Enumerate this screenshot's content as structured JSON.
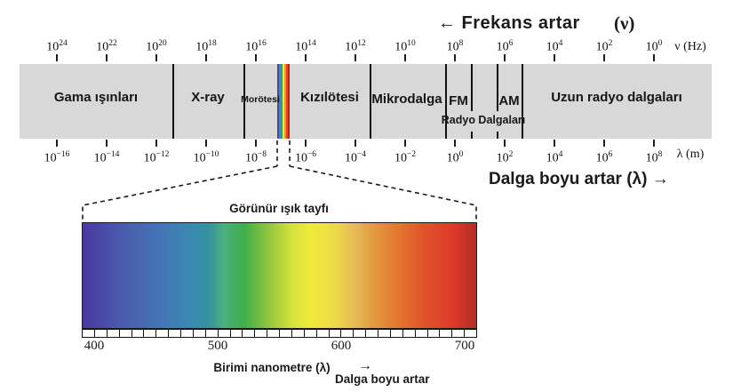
{
  "header": {
    "frekans_artar": "← Frekans artar",
    "nu_symbol": "(ν)"
  },
  "freq_axis": {
    "unit": "ν (Hz)",
    "ticks": [
      {
        "base": "10",
        "exp": "24"
      },
      {
        "base": "10",
        "exp": "22"
      },
      {
        "base": "10",
        "exp": "20"
      },
      {
        "base": "10",
        "exp": "18"
      },
      {
        "base": "10",
        "exp": "16"
      },
      {
        "base": "10",
        "exp": "14"
      },
      {
        "base": "10",
        "exp": "12"
      },
      {
        "base": "10",
        "exp": "10"
      },
      {
        "base": "10",
        "exp": "8"
      },
      {
        "base": "10",
        "exp": "6"
      },
      {
        "base": "10",
        "exp": "4"
      },
      {
        "base": "10",
        "exp": "2"
      },
      {
        "base": "10",
        "exp": "0"
      }
    ]
  },
  "wave_axis": {
    "unit": "λ (m)",
    "ticks": [
      {
        "base": "10",
        "exp": "−16"
      },
      {
        "base": "10",
        "exp": "−14"
      },
      {
        "base": "10",
        "exp": "−12"
      },
      {
        "base": "10",
        "exp": "−10"
      },
      {
        "base": "10",
        "exp": "−8"
      },
      {
        "base": "10",
        "exp": "−6"
      },
      {
        "base": "10",
        "exp": "−4"
      },
      {
        "base": "10",
        "exp": "−2"
      },
      {
        "base": "10",
        "exp": "0"
      },
      {
        "base": "10",
        "exp": "2"
      },
      {
        "base": "10",
        "exp": "4"
      },
      {
        "base": "10",
        "exp": "6"
      },
      {
        "base": "10",
        "exp": "8"
      }
    ]
  },
  "band": {
    "background": "#d8d8d8",
    "regions": {
      "gamma": "Gama ışınları",
      "xray": "X-ray",
      "uv": "Morötesi",
      "ir": "Kızılötesi",
      "microwave": "Mikrodalga",
      "fm": "FM",
      "am": "AM",
      "radio_sub": "Radyo Dalgaları",
      "long_radio": "Uzun radyo dalgaları"
    },
    "visible_strip_colors": [
      "#35519f",
      "#3f87c4",
      "#3aa14c",
      "#f0e63a",
      "#f09430",
      "#de452a",
      "#a8291f"
    ]
  },
  "wave_caption": "Dalga boyu artar  (λ) →",
  "visible_spectrum": {
    "title": "Görünür ışık tayfı",
    "scale_labels": [
      "400",
      "500",
      "600",
      "700"
    ],
    "ruler_cells": 32,
    "unit_caption": "Birimi nanometre  (λ)",
    "direction_caption": "Dalga boyu artar",
    "direction_arrow": "→",
    "gradient": [
      {
        "p": 0,
        "c": "#4a38a2"
      },
      {
        "p": 10,
        "c": "#4a5cad"
      },
      {
        "p": 20,
        "c": "#4476b6"
      },
      {
        "p": 27,
        "c": "#3a88b4"
      },
      {
        "p": 32,
        "c": "#35939f"
      },
      {
        "p": 36,
        "c": "#49b07e"
      },
      {
        "p": 41,
        "c": "#3fae4b"
      },
      {
        "p": 47,
        "c": "#8ec43d"
      },
      {
        "p": 53,
        "c": "#d4e23c"
      },
      {
        "p": 58,
        "c": "#f0ea3a"
      },
      {
        "p": 64,
        "c": "#eeda48"
      },
      {
        "p": 69,
        "c": "#e7bb57"
      },
      {
        "p": 74,
        "c": "#e29a3e"
      },
      {
        "p": 80,
        "c": "#e5762f"
      },
      {
        "p": 87,
        "c": "#e1522c"
      },
      {
        "p": 94,
        "c": "#de3a2a"
      },
      {
        "p": 100,
        "c": "#b32c24"
      }
    ]
  }
}
